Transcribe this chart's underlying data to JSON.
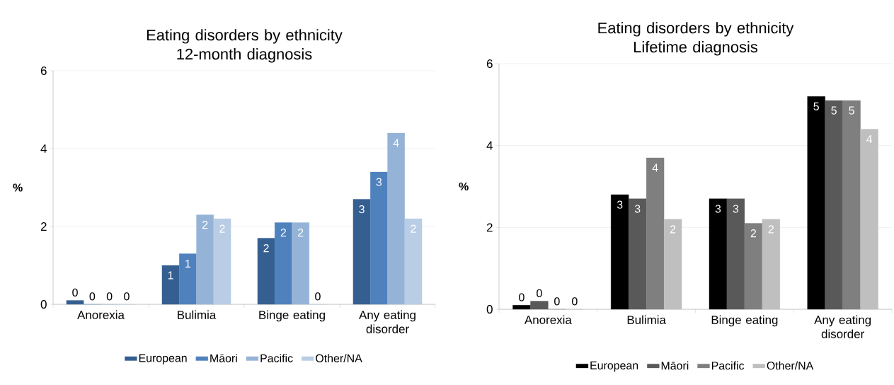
{
  "chart_data": [
    {
      "type": "bar",
      "title": "Eating disorders by ethnicity\n12-month diagnosis",
      "ylabel": "%",
      "categories": [
        "Anorexia",
        "Bulimia",
        "Binge eating",
        "Any eating disorder"
      ],
      "ylim": [
        0,
        6
      ],
      "yticks": [
        0,
        2,
        4,
        6
      ],
      "grid": "y",
      "legend": "bottom",
      "series": [
        {
          "name": "European",
          "color": "#355f91",
          "values": [
            0.1,
            1.0,
            1.7,
            2.7
          ],
          "value_labels": [
            "0",
            "1",
            "2",
            "3"
          ]
        },
        {
          "name": "Māori",
          "color": "#4f81bd",
          "values": [
            0,
            1.3,
            2.1,
            3.4
          ],
          "value_labels": [
            "0",
            "1",
            "2",
            "3"
          ]
        },
        {
          "name": "Pacific",
          "color": "#95b3d7",
          "values": [
            0,
            2.3,
            2.1,
            4.4
          ],
          "value_labels": [
            "0",
            "2",
            "2",
            "4"
          ]
        },
        {
          "name": "Other/NA",
          "color": "#b9cde5",
          "values": [
            0,
            2.2,
            0,
            2.2
          ],
          "value_labels": [
            "0",
            "2",
            "0",
            "2"
          ]
        }
      ]
    },
    {
      "type": "bar",
      "title": "Eating disorders by ethnicity\nLifetime diagnosis",
      "ylabel": "%",
      "categories": [
        "Anorexia",
        "Bulimia",
        "Binge eating",
        "Any eating disorder"
      ],
      "ylim": [
        0,
        6
      ],
      "yticks": [
        0,
        2,
        4,
        6
      ],
      "grid": "y",
      "legend": "bottom",
      "series": [
        {
          "name": "European",
          "color": "#000000",
          "values": [
            0.1,
            2.8,
            2.7,
            5.2
          ],
          "value_labels": [
            "0",
            "3",
            "3",
            "5"
          ]
        },
        {
          "name": "Māori",
          "color": "#595959",
          "values": [
            0.2,
            2.7,
            2.7,
            5.1
          ],
          "value_labels": [
            "0",
            "3",
            "3",
            "5"
          ]
        },
        {
          "name": "Pacific",
          "color": "#7f7f7f",
          "values": [
            0,
            3.7,
            2.1,
            5.1
          ],
          "value_labels": [
            "0",
            "4",
            "2",
            "5"
          ]
        },
        {
          "name": "Other/NA",
          "color": "#bfbfbf",
          "values": [
            0,
            2.2,
            2.2,
            4.4
          ],
          "value_labels": [
            "0",
            "2",
            "2",
            "4"
          ]
        }
      ]
    }
  ]
}
